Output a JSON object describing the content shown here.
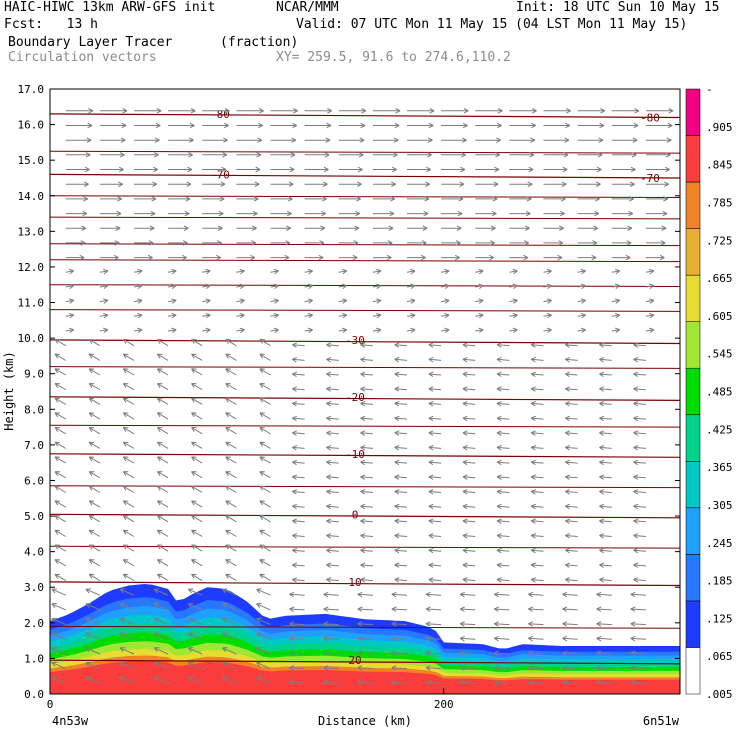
{
  "header": {
    "line1_left": "HAIC-HIWC 13km ARW-GFS init",
    "line1_mid": "NCAR/MMM",
    "line1_right": "Init: 18 UTC Sun 10 May 15",
    "fcst": "Fcst:   13 h",
    "valid": "Valid: 07 UTC Mon 11 May 15 (04 LST Mon 11 May 15)",
    "field_name": "Boundary Layer Tracer",
    "field_units": "(fraction)",
    "vectors_name": "Circulation vectors",
    "xy_range": "XY= 259.5, 91.6 to 274.6,110.2"
  },
  "chart_data": {
    "type": "heatmap",
    "ylabel": "Height (km)",
    "xlabel": "Distance (km)",
    "x_start_label": "4n53w",
    "x_end_label": "6n51w",
    "xlim": [
      0,
      320
    ],
    "ylim": [
      0,
      17
    ],
    "y_ticks": [
      "0.0",
      "1.0",
      "2.0",
      "3.0",
      "4.0",
      "5.0",
      "6.0",
      "7.0",
      "8.0",
      "9.0",
      "10.0",
      "11.0",
      "12.0",
      "13.0",
      "14.0",
      "15.0",
      "16.0",
      "17.0"
    ],
    "x_ticks": [
      {
        "value": 0,
        "label": "0"
      },
      {
        "value": 200,
        "label": "200"
      }
    ],
    "colorbar": {
      "labels": [
        ".005",
        ".065",
        ".125",
        ".185",
        ".245",
        ".305",
        ".365",
        ".425",
        ".485",
        ".545",
        ".605",
        ".665",
        ".725",
        ".785",
        ".845",
        ".905",
        "-"
      ],
      "colors": [
        "#ffffff",
        "#1e3cff",
        "#2878ff",
        "#1ea0ff",
        "#00c8c8",
        "#00d28c",
        "#00dc00",
        "#a0e632",
        "#e6dc32",
        "#e6af2d",
        "#f08228",
        "#fa3c3c",
        "#f00082"
      ]
    },
    "tracer_top_height_km": [
      [
        0,
        2.05
      ],
      [
        10,
        2.25
      ],
      [
        20,
        2.55
      ],
      [
        30,
        2.9
      ],
      [
        40,
        3.05
      ],
      [
        50,
        3.1
      ],
      [
        60,
        2.95
      ],
      [
        65,
        2.55
      ],
      [
        70,
        2.75
      ],
      [
        80,
        3.0
      ],
      [
        90,
        2.95
      ],
      [
        100,
        2.6
      ],
      [
        110,
        2.1
      ],
      [
        120,
        2.2
      ],
      [
        140,
        2.25
      ],
      [
        160,
        2.1
      ],
      [
        180,
        2.05
      ],
      [
        195,
        1.85
      ],
      [
        200,
        1.45
      ],
      [
        220,
        1.4
      ],
      [
        230,
        1.25
      ],
      [
        240,
        1.4
      ],
      [
        260,
        1.35
      ],
      [
        280,
        1.35
      ],
      [
        300,
        1.35
      ],
      [
        320,
        1.35
      ]
    ],
    "isotherms": [
      {
        "label": "-80",
        "height_km": 16.3
      },
      {
        "label": "-70",
        "height_km": 14.6
      },
      {
        "label": "-30",
        "height_km": 9.95
      },
      {
        "label": "-20",
        "height_km": 8.35
      },
      {
        "label": "-10",
        "height_km": 6.75
      },
      {
        "label": "0",
        "height_km": 5.05
      },
      {
        "label": "10",
        "height_km": 3.15
      },
      {
        "label": "20",
        "height_km": 0.95
      }
    ]
  }
}
